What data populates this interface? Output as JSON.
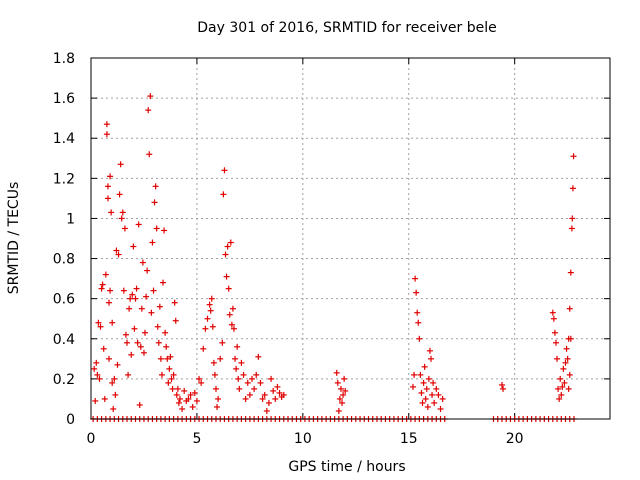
{
  "chart_data": {
    "type": "scatter",
    "title": "Day 301 of 2016, SRMTID for receiver bele",
    "xlabel": "GPS time / hours",
    "ylabel": "SRMTID / TECUs",
    "xlim": [
      0,
      24.5
    ],
    "ylim": [
      0,
      1.8
    ],
    "xticks": [
      0,
      5,
      10,
      15,
      20
    ],
    "yticks": [
      0,
      0.2,
      0.4,
      0.6,
      0.8,
      1,
      1.2,
      1.4,
      1.6,
      1.8
    ],
    "ytick_labels": [
      "0",
      "0.2",
      "0.4",
      "0.6",
      "0.8",
      "1",
      "1.2",
      "1.4",
      "1.6",
      "1.8"
    ],
    "grid": true,
    "marker": "+",
    "series": [
      {
        "name": "bele",
        "color": "#e00000",
        "points": [
          [
            0.15,
            0.25
          ],
          [
            0.2,
            0.09
          ],
          [
            0.25,
            0.28
          ],
          [
            0.3,
            0.22
          ],
          [
            0.35,
            0.48
          ],
          [
            0.4,
            0.2
          ],
          [
            0.45,
            0.46
          ],
          [
            0.5,
            0.65
          ],
          [
            0.55,
            0.67
          ],
          [
            0.6,
            0.35
          ],
          [
            0.65,
            0.1
          ],
          [
            0.7,
            0.72
          ],
          [
            0.75,
            1.47
          ],
          [
            0.75,
            1.42
          ],
          [
            0.8,
            1.1
          ],
          [
            0.8,
            1.16
          ],
          [
            0.85,
            0.58
          ],
          [
            0.85,
            0.3
          ],
          [
            0.9,
            1.21
          ],
          [
            0.9,
            0.64
          ],
          [
            0.95,
            1.03
          ],
          [
            1.0,
            0.18
          ],
          [
            1.0,
            0.48
          ],
          [
            1.05,
            0.05
          ],
          [
            1.1,
            0.2
          ],
          [
            1.15,
            0.12
          ],
          [
            1.2,
            0.84
          ],
          [
            1.25,
            0.27
          ],
          [
            1.3,
            0.82
          ],
          [
            1.35,
            1.12
          ],
          [
            1.4,
            1.27
          ],
          [
            1.45,
            1.0
          ],
          [
            1.5,
            1.03
          ],
          [
            1.55,
            0.64
          ],
          [
            1.6,
            0.95
          ],
          [
            1.65,
            0.42
          ],
          [
            1.7,
            0.38
          ],
          [
            1.75,
            0.22
          ],
          [
            1.8,
            0.55
          ],
          [
            1.85,
            0.6
          ],
          [
            1.9,
            0.32
          ],
          [
            1.95,
            0.62
          ],
          [
            2.0,
            0.86
          ],
          [
            2.05,
            0.45
          ],
          [
            2.1,
            0.6
          ],
          [
            2.15,
            0.65
          ],
          [
            2.2,
            0.38
          ],
          [
            2.25,
            0.97
          ],
          [
            2.3,
            0.07
          ],
          [
            2.35,
            0.36
          ],
          [
            2.4,
            0.55
          ],
          [
            2.45,
            0.78
          ],
          [
            2.5,
            0.33
          ],
          [
            2.55,
            0.43
          ],
          [
            2.6,
            0.61
          ],
          [
            2.65,
            0.74
          ],
          [
            2.7,
            1.54
          ],
          [
            2.75,
            1.32
          ],
          [
            2.8,
            1.61
          ],
          [
            2.85,
            0.53
          ],
          [
            2.9,
            0.88
          ],
          [
            2.95,
            0.64
          ],
          [
            3.0,
            1.08
          ],
          [
            3.05,
            1.16
          ],
          [
            3.1,
            0.95
          ],
          [
            3.15,
            0.46
          ],
          [
            3.2,
            0.38
          ],
          [
            3.25,
            0.56
          ],
          [
            3.3,
            0.3
          ],
          [
            3.35,
            0.22
          ],
          [
            3.4,
            0.68
          ],
          [
            3.45,
            0.94
          ],
          [
            3.5,
            0.43
          ],
          [
            3.55,
            0.36
          ],
          [
            3.6,
            0.3
          ],
          [
            3.65,
            0.18
          ],
          [
            3.7,
            0.25
          ],
          [
            3.75,
            0.31
          ],
          [
            3.8,
            0.2
          ],
          [
            3.85,
            0.15
          ],
          [
            3.9,
            0.22
          ],
          [
            3.95,
            0.58
          ],
          [
            4.0,
            0.49
          ],
          [
            4.05,
            0.12
          ],
          [
            4.1,
            0.15
          ],
          [
            4.15,
            0.08
          ],
          [
            4.2,
            0.1
          ],
          [
            4.3,
            0.05
          ],
          [
            4.4,
            0.14
          ],
          [
            4.5,
            0.09
          ],
          [
            4.6,
            0.1
          ],
          [
            4.7,
            0.12
          ],
          [
            4.8,
            0.06
          ],
          [
            4.9,
            0.13
          ],
          [
            5.0,
            0.09
          ],
          [
            5.1,
            0.2
          ],
          [
            5.2,
            0.18
          ],
          [
            5.3,
            0.35
          ],
          [
            5.4,
            0.45
          ],
          [
            5.5,
            0.5
          ],
          [
            5.6,
            0.57
          ],
          [
            5.65,
            0.54
          ],
          [
            5.7,
            0.6
          ],
          [
            5.75,
            0.46
          ],
          [
            5.8,
            0.28
          ],
          [
            5.85,
            0.22
          ],
          [
            5.9,
            0.15
          ],
          [
            5.95,
            0.06
          ],
          [
            6.0,
            0.1
          ],
          [
            6.1,
            0.3
          ],
          [
            6.2,
            0.38
          ],
          [
            6.25,
            1.12
          ],
          [
            6.3,
            1.24
          ],
          [
            6.35,
            0.82
          ],
          [
            6.4,
            0.71
          ],
          [
            6.45,
            0.86
          ],
          [
            6.5,
            0.65
          ],
          [
            6.55,
            0.52
          ],
          [
            6.6,
            0.88
          ],
          [
            6.65,
            0.47
          ],
          [
            6.7,
            0.55
          ],
          [
            6.75,
            0.45
          ],
          [
            6.8,
            0.3
          ],
          [
            6.85,
            0.25
          ],
          [
            6.9,
            0.36
          ],
          [
            6.95,
            0.2
          ],
          [
            7.0,
            0.15
          ],
          [
            7.1,
            0.28
          ],
          [
            7.2,
            0.22
          ],
          [
            7.3,
            0.1
          ],
          [
            7.4,
            0.18
          ],
          [
            7.5,
            0.12
          ],
          [
            7.6,
            0.2
          ],
          [
            7.7,
            0.15
          ],
          [
            7.8,
            0.22
          ],
          [
            7.9,
            0.31
          ],
          [
            8.0,
            0.18
          ],
          [
            8.1,
            0.1
          ],
          [
            8.2,
            0.12
          ],
          [
            8.3,
            0.04
          ],
          [
            8.4,
            0.08
          ],
          [
            8.5,
            0.2
          ],
          [
            8.6,
            0.14
          ],
          [
            8.7,
            0.1
          ],
          [
            8.8,
            0.16
          ],
          [
            8.9,
            0.13
          ],
          [
            9.0,
            0.11
          ],
          [
            9.1,
            0.12
          ],
          [
            11.6,
            0.23
          ],
          [
            11.65,
            0.18
          ],
          [
            11.7,
            0.04
          ],
          [
            11.75,
            0.1
          ],
          [
            11.8,
            0.15
          ],
          [
            11.85,
            0.08
          ],
          [
            11.9,
            0.12
          ],
          [
            11.95,
            0.2
          ],
          [
            12.0,
            0.14
          ],
          [
            15.2,
            0.16
          ],
          [
            15.25,
            0.22
          ],
          [
            15.3,
            0.7
          ],
          [
            15.35,
            0.63
          ],
          [
            15.4,
            0.53
          ],
          [
            15.45,
            0.48
          ],
          [
            15.5,
            0.4
          ],
          [
            15.55,
            0.22
          ],
          [
            15.6,
            0.13
          ],
          [
            15.65,
            0.08
          ],
          [
            15.7,
            0.18
          ],
          [
            15.75,
            0.26
          ],
          [
            15.8,
            0.1
          ],
          [
            15.85,
            0.15
          ],
          [
            15.9,
            0.06
          ],
          [
            15.95,
            0.2
          ],
          [
            16.0,
            0.34
          ],
          [
            16.05,
            0.3
          ],
          [
            16.1,
            0.12
          ],
          [
            16.15,
            0.18
          ],
          [
            16.2,
            0.08
          ],
          [
            16.3,
            0.15
          ],
          [
            16.4,
            0.12
          ],
          [
            16.5,
            0.05
          ],
          [
            16.6,
            0.1
          ],
          [
            19.4,
            0.17
          ],
          [
            19.45,
            0.15
          ],
          [
            21.8,
            0.53
          ],
          [
            21.85,
            0.5
          ],
          [
            21.9,
            0.43
          ],
          [
            21.95,
            0.38
          ],
          [
            22.0,
            0.3
          ],
          [
            22.05,
            0.15
          ],
          [
            22.1,
            0.1
          ],
          [
            22.15,
            0.2
          ],
          [
            22.2,
            0.12
          ],
          [
            22.25,
            0.16
          ],
          [
            22.3,
            0.25
          ],
          [
            22.35,
            0.18
          ],
          [
            22.4,
            0.28
          ],
          [
            22.45,
            0.35
          ],
          [
            22.5,
            0.3
          ],
          [
            22.55,
            0.4
          ],
          [
            22.6,
            0.55
          ],
          [
            22.65,
            0.73
          ],
          [
            22.7,
            0.95
          ],
          [
            22.72,
            1.0
          ],
          [
            22.75,
            1.15
          ],
          [
            22.78,
            1.31
          ],
          [
            22.6,
            0.22
          ],
          [
            22.55,
            0.15
          ],
          [
            22.65,
            0.4
          ]
        ],
        "zero_points_x": [
          0.1,
          0.3,
          0.5,
          0.7,
          0.9,
          1.1,
          1.3,
          1.5,
          1.7,
          1.9,
          2.1,
          2.3,
          2.5,
          2.7,
          2.9,
          3.1,
          3.3,
          3.5,
          3.7,
          3.9,
          4.1,
          4.3,
          4.5,
          4.7,
          4.9,
          5.1,
          5.3,
          5.5,
          5.7,
          5.9,
          6.1,
          6.3,
          6.5,
          6.7,
          6.9,
          7.1,
          7.3,
          7.5,
          7.7,
          7.9,
          8.1,
          8.3,
          8.5,
          8.7,
          8.9,
          9.1,
          9.3,
          9.5,
          9.7,
          9.9,
          10.1,
          10.3,
          10.5,
          10.7,
          10.9,
          11.1,
          11.3,
          11.5,
          11.7,
          11.9,
          12.1,
          12.3,
          12.5,
          12.7,
          12.9,
          13.1,
          13.3,
          13.5,
          13.7,
          13.9,
          14.1,
          14.3,
          14.5,
          14.7,
          14.9,
          15.1,
          15.3,
          15.5,
          15.7,
          15.9,
          16.1,
          16.3,
          16.5,
          16.7,
          19.0,
          19.2,
          19.4,
          19.6,
          19.8,
          20.0,
          20.2,
          20.4,
          20.6,
          20.8,
          21.0,
          21.2,
          21.4,
          21.6,
          21.8,
          22.0,
          22.2,
          22.4,
          22.6,
          22.8
        ]
      }
    ]
  }
}
